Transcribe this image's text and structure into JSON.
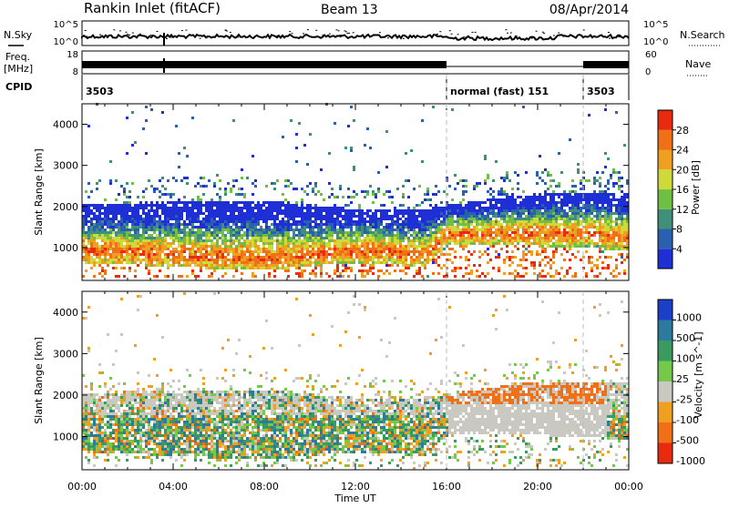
{
  "header": {
    "site": "Rankin Inlet (fitACF)",
    "beam": "Beam 13",
    "date": "08/Apr/2014"
  },
  "status_panels": {
    "nsky_label": "N.Sky",
    "nsearch_label": "N.Search",
    "nsky_ticks": [
      "10^5",
      "10^0"
    ],
    "nsearch_ticks": [
      "10^5",
      "10^0"
    ],
    "freq_label_1": "Freq.",
    "freq_label_2": "[MHz]",
    "freq_ticks": [
      "18",
      "8"
    ],
    "nave_label": "Nave",
    "nave_ticks": [
      "60",
      "0"
    ],
    "cpid_label": "CPID",
    "cpid_segments": [
      {
        "label": "3503",
        "start": 0.0,
        "end": 16.0
      },
      {
        "label": "normal (fast) 151",
        "start": 16.0,
        "end": 22.0
      },
      {
        "label": "3503",
        "start": 22.0,
        "end": 24.0
      }
    ]
  },
  "chart_data": [
    {
      "type": "heatmap",
      "quantity": "Power",
      "ylabel": "Slant Range [km]",
      "xlabel": "Time UT",
      "x_ticks": [
        "00:00",
        "04:00",
        "08:00",
        "12:00",
        "16:00",
        "20:00",
        "00:00"
      ],
      "x_range_hours": [
        0,
        24
      ],
      "y_ticks": [
        1000,
        2000,
        3000,
        4000
      ],
      "ylim": [
        200,
        4500
      ],
      "colorbar_label": "Power [dB]",
      "colorbar_ticks": [
        4,
        8,
        12,
        16,
        20,
        24,
        28
      ],
      "colorbar_colors": [
        "#1f2fd6",
        "#2b5fb0",
        "#3f8f7a",
        "#6fbf45",
        "#cfd93a",
        "#f0a020",
        "#f07018",
        "#e82a10"
      ],
      "main_band": [
        {
          "t": 0,
          "lo": 600,
          "hi": 2000
        },
        {
          "t": 4,
          "lo": 500,
          "hi": 2100
        },
        {
          "t": 8,
          "lo": 400,
          "hi": 2100
        },
        {
          "t": 12,
          "lo": 600,
          "hi": 1900
        },
        {
          "t": 15,
          "lo": 500,
          "hi": 1900
        },
        {
          "t": 16,
          "lo": 1000,
          "hi": 2000
        },
        {
          "t": 20,
          "lo": 1000,
          "hi": 2300
        },
        {
          "t": 24,
          "lo": 900,
          "hi": 2300
        }
      ]
    },
    {
      "type": "heatmap",
      "quantity": "Velocity",
      "ylabel": "Slant Range [km]",
      "xlabel": "Time UT",
      "x_ticks": [
        "00:00",
        "04:00",
        "08:00",
        "12:00",
        "16:00",
        "20:00",
        "00:00"
      ],
      "x_range_hours": [
        0,
        24
      ],
      "y_ticks": [
        1000,
        2000,
        3000,
        4000
      ],
      "ylim": [
        200,
        4500
      ],
      "colorbar_label": "Velocity [m s^-1]",
      "colorbar_ticks": [
        "1000",
        "500",
        "100",
        "25",
        "-25",
        "-100",
        "-500",
        "-1000"
      ],
      "colorbar_colors": [
        "#1c3fc8",
        "#2c7a9e",
        "#3a9a60",
        "#74c84a",
        "#c9c9c2",
        "#f0a020",
        "#f07018",
        "#e82a10"
      ]
    }
  ],
  "colors": {
    "grid_dash": "#bbbbbb",
    "frame": "#000000"
  }
}
